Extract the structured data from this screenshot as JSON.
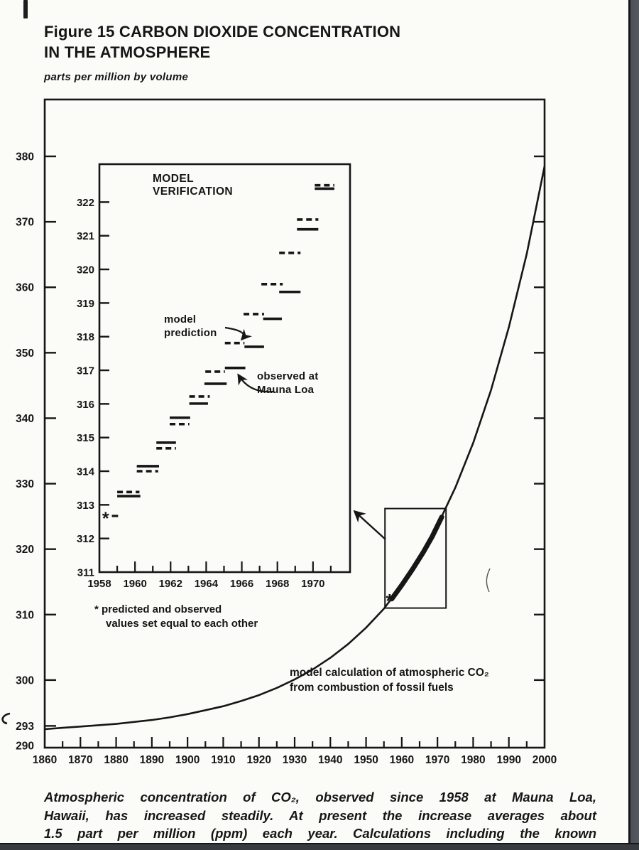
{
  "page": {
    "title_line1": "Figure 15 CARBON DIOXIDE CONCENTRATION",
    "title_line2": "IN THE ATMOSPHERE",
    "units_label": "parts per million by volume",
    "caption_lines": [
      "Atmospheric concentration of CO₂, observed since 1958 at Mauna Loa,",
      "Hawaii, has increased steadily. At present the increase averages about",
      "1.5 part per million (ppm) each year. Calculations including the known"
    ]
  },
  "inset_labels": {
    "title_line1": "MODEL",
    "title_line2": "VERIFICATION",
    "model_prediction_line1": "model",
    "model_prediction_line2": "prediction",
    "observed_line1": "observed at",
    "observed_line2": "Mauna Loa",
    "footnote_line1": "* predicted and observed",
    "footnote_line2": "values set equal to each other"
  },
  "curve_annotation": {
    "line1": "model calculation of atmospheric CO₂",
    "line2": "from combustion of fossil fuels"
  },
  "colors": {
    "ink": "#161616",
    "paper": "#fbfbf8",
    "edge_band": "#4d5157",
    "bottom_band": "#383c41"
  },
  "chart_data": {
    "type": "line",
    "title": "Figure 15 Carbon dioxide concentration in the atmosphere",
    "ylabel": "parts per million by volume",
    "main": {
      "xlim": [
        1860,
        2000
      ],
      "ylim": [
        289.7,
        388.6
      ],
      "x_tick_labels": [
        1860,
        1870,
        1880,
        1890,
        1900,
        1910,
        1920,
        1930,
        1940,
        1950,
        1960,
        1970,
        1980,
        1990,
        2000
      ],
      "x_minor_step": 5,
      "y_tick_labels": [
        380,
        370,
        360,
        350,
        340,
        330,
        320,
        310,
        300,
        293,
        290
      ],
      "y_right_ticks": [
        380,
        370,
        360,
        350,
        340,
        330,
        320,
        310,
        300
      ],
      "grid": false,
      "curve_label": "model calculation of atmospheric CO₂ from combustion of fossil fuels",
      "curve_points": [
        [
          1860,
          292.5
        ],
        [
          1865,
          292.7
        ],
        [
          1870,
          292.9
        ],
        [
          1875,
          293.1
        ],
        [
          1880,
          293.3
        ],
        [
          1885,
          293.6
        ],
        [
          1890,
          293.9
        ],
        [
          1895,
          294.3
        ],
        [
          1900,
          294.8
        ],
        [
          1905,
          295.4
        ],
        [
          1910,
          296.0
        ],
        [
          1915,
          296.8
        ],
        [
          1920,
          297.7
        ],
        [
          1925,
          298.8
        ],
        [
          1930,
          300.1
        ],
        [
          1935,
          301.6
        ],
        [
          1940,
          303.4
        ],
        [
          1945,
          305.5
        ],
        [
          1950,
          308.0
        ],
        [
          1955,
          310.9
        ],
        [
          1960,
          314.5
        ],
        [
          1965,
          318.6
        ],
        [
          1970,
          323.6
        ],
        [
          1975,
          329.4
        ],
        [
          1980,
          336.2
        ],
        [
          1985,
          344.3
        ],
        [
          1990,
          353.9
        ],
        [
          1995,
          365.1
        ],
        [
          2000,
          378.5
        ]
      ],
      "observed_overlay_points": [
        [
          1957.2,
          312.4
        ],
        [
          1960,
          314.5
        ],
        [
          1963,
          316.9
        ],
        [
          1966,
          319.5
        ],
        [
          1968.5,
          321.9
        ],
        [
          1971.2,
          324.9
        ]
      ],
      "asterisk": {
        "year": 1957.2,
        "ppm": 312.4
      },
      "zoom_box": {
        "year0": 1955.3,
        "year1": 1972.4,
        "ppm0": 311.0,
        "ppm1": 326.2
      }
    },
    "inset": {
      "title": "MODEL VERIFICATION",
      "xlim": [
        1958,
        1972.1
      ],
      "ylim": [
        311,
        323.1
      ],
      "x_tick_labels": [
        1958,
        1960,
        1962,
        1964,
        1966,
        1968,
        1970
      ],
      "y_tick_labels": [
        311,
        312,
        313,
        314,
        315,
        316,
        317,
        318,
        319,
        320,
        321,
        322
      ],
      "asterisk": {
        "year": 1958.35,
        "ppm": 312.67,
        "note": "predicted and observed values set equal to each other"
      },
      "asterisk_dash": {
        "year0": 1958.7,
        "year1": 1959.05,
        "ppm": 312.67
      },
      "legend": {
        "dashed": "model prediction",
        "solid": "observed at Mauna Loa"
      },
      "segments": [
        {
          "year0": 1959.0,
          "year1": 1960.25,
          "ppm": 313.38,
          "style": "dashed"
        },
        {
          "year0": 1959.0,
          "year1": 1960.3,
          "ppm": 313.26,
          "style": "solid"
        },
        {
          "year0": 1960.1,
          "year1": 1961.35,
          "ppm": 314.15,
          "style": "solid"
        },
        {
          "year0": 1960.1,
          "year1": 1961.3,
          "ppm": 314.0,
          "style": "dashed"
        },
        {
          "year0": 1961.2,
          "year1": 1962.3,
          "ppm": 314.85,
          "style": "solid"
        },
        {
          "year0": 1961.2,
          "year1": 1962.3,
          "ppm": 314.68,
          "style": "dashed"
        },
        {
          "year0": 1961.95,
          "year1": 1963.1,
          "ppm": 315.59,
          "style": "solid"
        },
        {
          "year0": 1961.95,
          "year1": 1963.05,
          "ppm": 315.4,
          "style": "dashed"
        },
        {
          "year0": 1963.05,
          "year1": 1964.2,
          "ppm": 316.22,
          "style": "dashed"
        },
        {
          "year0": 1963.05,
          "year1": 1964.1,
          "ppm": 316.01,
          "style": "solid"
        },
        {
          "year0": 1963.95,
          "year1": 1965.05,
          "ppm": 316.96,
          "style": "dashed"
        },
        {
          "year0": 1963.9,
          "year1": 1965.15,
          "ppm": 316.6,
          "style": "solid"
        },
        {
          "year0": 1965.05,
          "year1": 1966.2,
          "ppm": 317.07,
          "style": "solid",
          "note": "observed at Mauna Loa arrow target"
        },
        {
          "year0": 1965.05,
          "year1": 1966.15,
          "ppm": 317.81,
          "style": "dashed",
          "note": "model prediction arrow target"
        },
        {
          "year0": 1966.15,
          "year1": 1967.25,
          "ppm": 317.7,
          "style": "solid"
        },
        {
          "year0": 1966.1,
          "year1": 1967.25,
          "ppm": 318.67,
          "style": "dashed"
        },
        {
          "year0": 1967.2,
          "year1": 1968.25,
          "ppm": 318.53,
          "style": "solid"
        },
        {
          "year0": 1967.1,
          "year1": 1968.3,
          "ppm": 319.56,
          "style": "dashed"
        },
        {
          "year0": 1968.1,
          "year1": 1969.3,
          "ppm": 319.33,
          "style": "solid"
        },
        {
          "year0": 1968.1,
          "year1": 1969.3,
          "ppm": 320.49,
          "style": "dashed"
        },
        {
          "year0": 1969.1,
          "year1": 1970.3,
          "ppm": 321.48,
          "style": "dashed"
        },
        {
          "year0": 1969.1,
          "year1": 1970.3,
          "ppm": 321.19,
          "style": "solid"
        },
        {
          "year0": 1970.1,
          "year1": 1971.2,
          "ppm": 322.5,
          "style": "dashed"
        },
        {
          "year0": 1970.1,
          "year1": 1971.2,
          "ppm": 322.4,
          "style": "solid"
        }
      ]
    }
  }
}
